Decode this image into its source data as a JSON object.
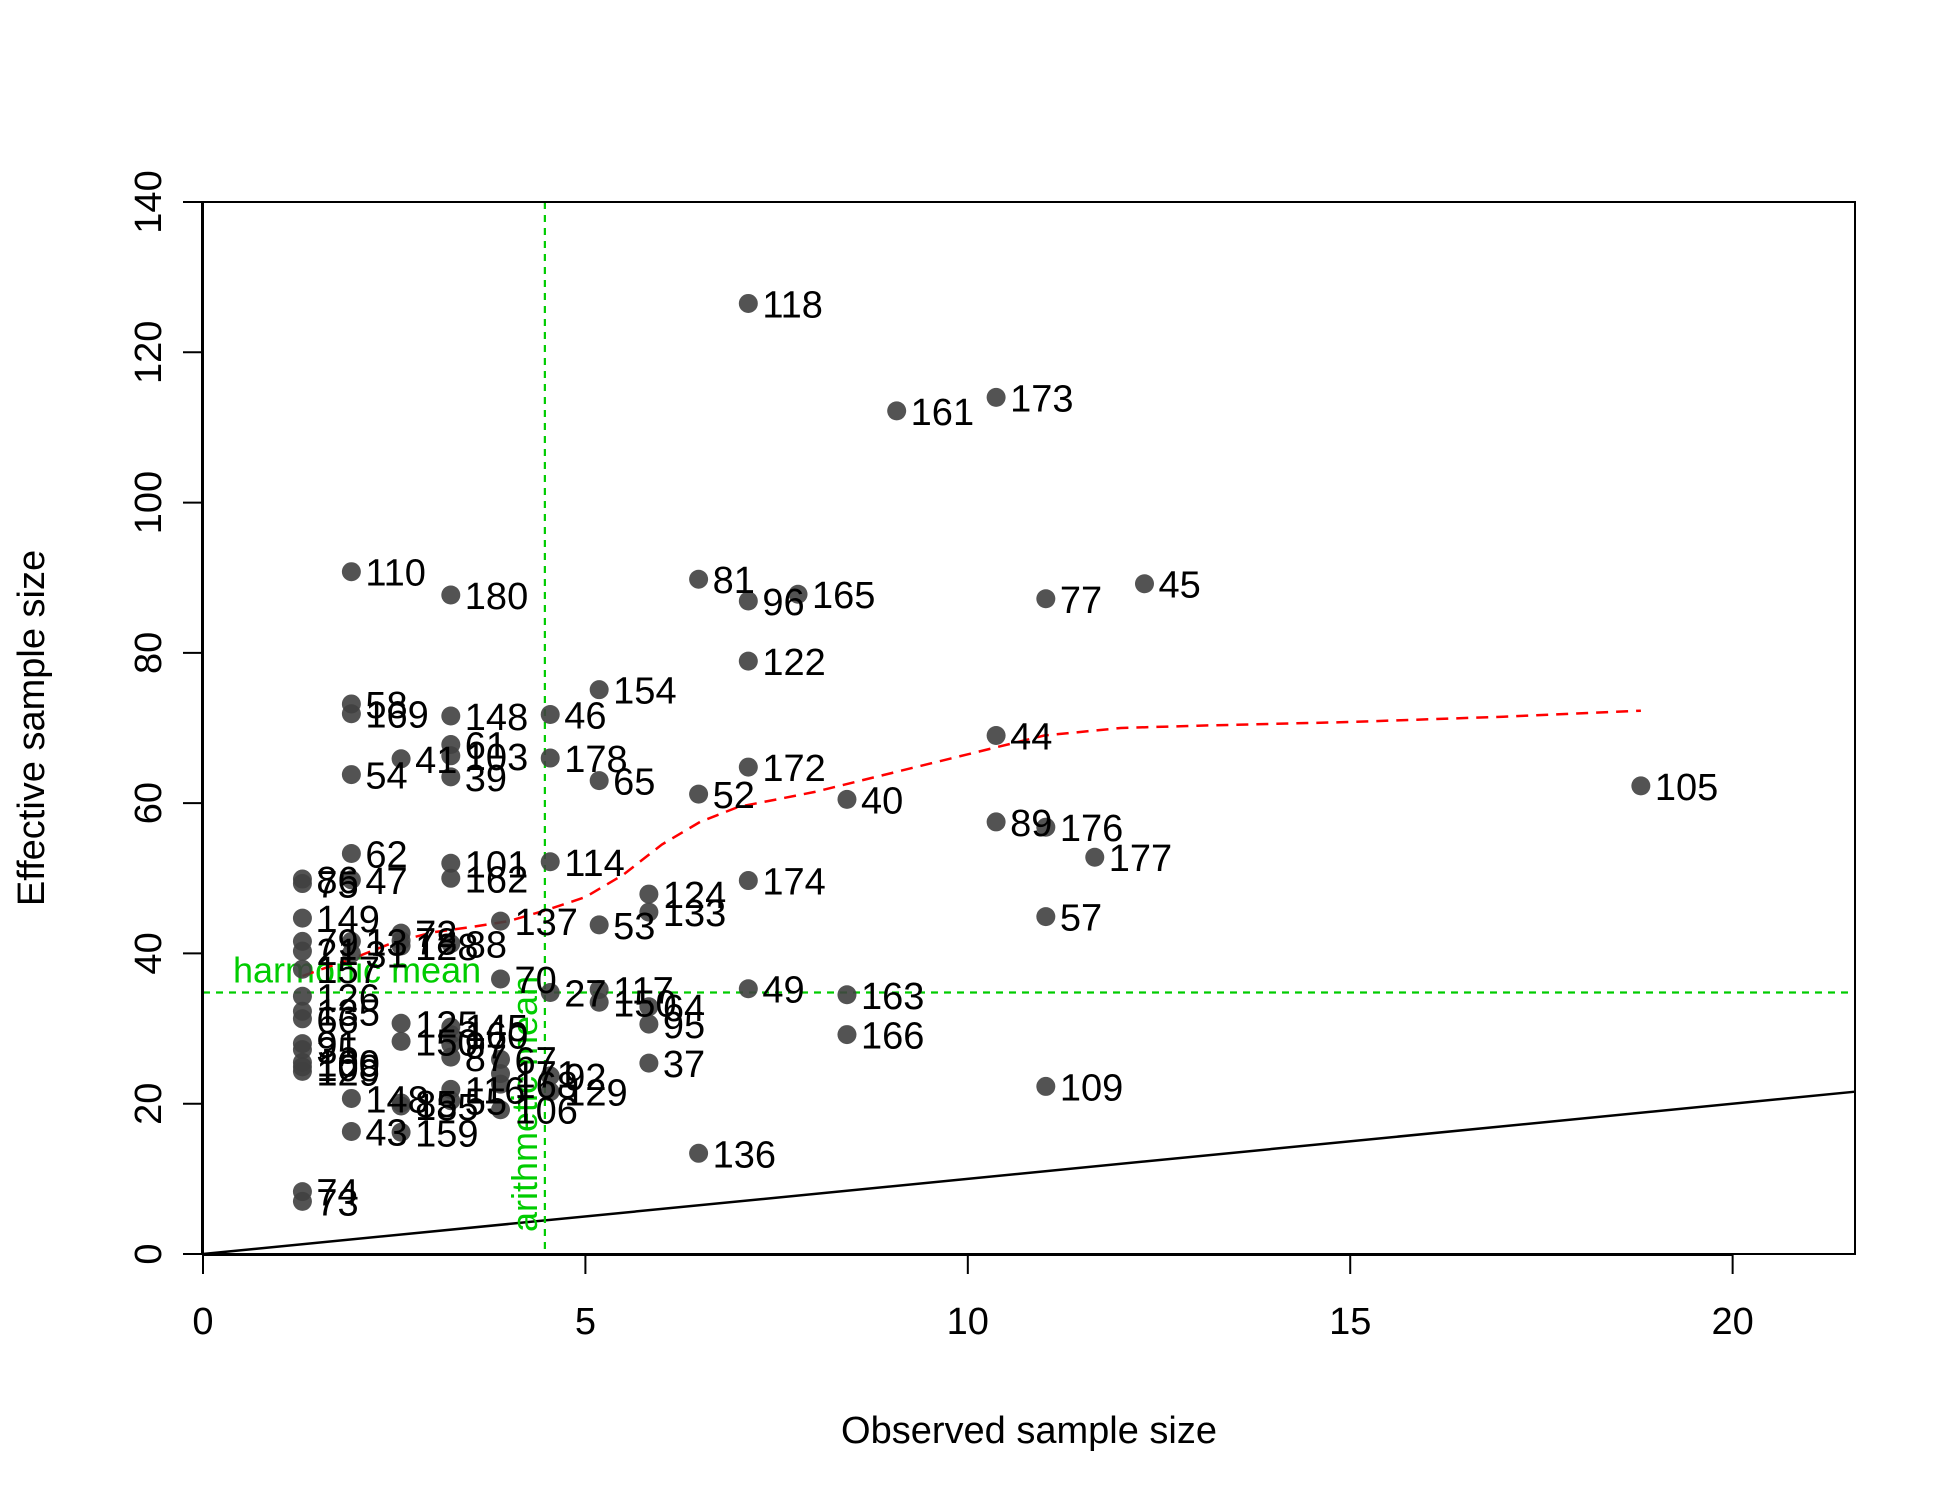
{
  "chart_data": {
    "type": "scatter",
    "title": "",
    "xlabel": "Observed sample size",
    "ylabel": "Effective sample size",
    "xlim": [
      0,
      21.6
    ],
    "ylim": [
      0,
      140
    ],
    "xticks": [
      "0",
      "5",
      "10",
      "15",
      "20"
    ],
    "yticks": [
      "0",
      "20",
      "40",
      "60",
      "80",
      "100",
      "120",
      "140"
    ],
    "colors": {
      "points": "#404040",
      "smooth": "#ff0000",
      "reference": "#00cc00",
      "identity": "#000000"
    },
    "identity_line": {
      "slope": 1
    },
    "reference_lines": {
      "harmonic_mean": {
        "label": "harmonic mean",
        "value": 34.8
      },
      "arithmetic_mean": {
        "label": "arithmetic mean",
        "value": 4.47
      }
    },
    "smooth_curve": {
      "x": [
        1.3,
        2.0,
        2.5,
        3.0,
        3.5,
        4.0,
        4.5,
        5.0,
        5.5,
        6.0,
        6.5,
        7.0,
        8.0,
        9.0,
        10.0,
        11.0,
        12.0,
        13.0,
        15.0,
        17.0,
        18.8
      ],
      "y": [
        37,
        39.5,
        41.5,
        42.8,
        43.5,
        44.3,
        45.8,
        47.5,
        50.5,
        54.5,
        57.5,
        59.5,
        61.5,
        64,
        66.5,
        69,
        70,
        70.3,
        70.8,
        71.5,
        72.3
      ]
    },
    "points": [
      {
        "label": "118",
        "x": 7.13,
        "y": 126.5
      },
      {
        "label": "161",
        "x": 9.07,
        "y": 112.2
      },
      {
        "label": "173",
        "x": 10.37,
        "y": 114.0
      },
      {
        "label": "110",
        "x": 1.94,
        "y": 90.8
      },
      {
        "label": "180",
        "x": 3.24,
        "y": 87.7
      },
      {
        "label": "81",
        "x": 6.48,
        "y": 89.8
      },
      {
        "label": "96",
        "x": 7.13,
        "y": 86.9
      },
      {
        "label": "165",
        "x": 7.78,
        "y": 87.8
      },
      {
        "label": "77",
        "x": 11.02,
        "y": 87.2
      },
      {
        "label": "45",
        "x": 12.31,
        "y": 89.2
      },
      {
        "label": "122",
        "x": 7.13,
        "y": 78.9
      },
      {
        "label": "154",
        "x": 5.18,
        "y": 75.1
      },
      {
        "label": "58",
        "x": 1.94,
        "y": 73.2
      },
      {
        "label": "169",
        "x": 1.94,
        "y": 71.9
      },
      {
        "label": "148",
        "x": 3.24,
        "y": 71.6
      },
      {
        "label": "46",
        "x": 4.54,
        "y": 71.8
      },
      {
        "label": "61",
        "x": 3.24,
        "y": 67.8
      },
      {
        "label": "41",
        "x": 2.59,
        "y": 65.9
      },
      {
        "label": "103",
        "x": 3.24,
        "y": 66.3
      },
      {
        "label": "178",
        "x": 4.54,
        "y": 66.0
      },
      {
        "label": "44",
        "x": 10.37,
        "y": 69.0
      },
      {
        "label": "54",
        "x": 1.94,
        "y": 63.8
      },
      {
        "label": "39",
        "x": 3.24,
        "y": 63.5
      },
      {
        "label": "65",
        "x": 5.18,
        "y": 63.0
      },
      {
        "label": "172",
        "x": 7.13,
        "y": 64.8
      },
      {
        "label": "52",
        "x": 6.48,
        "y": 61.2
      },
      {
        "label": "40",
        "x": 8.42,
        "y": 60.5
      },
      {
        "label": "105",
        "x": 18.8,
        "y": 62.3
      },
      {
        "label": "89",
        "x": 10.37,
        "y": 57.5
      },
      {
        "label": "176",
        "x": 11.02,
        "y": 56.8
      },
      {
        "label": "177",
        "x": 11.66,
        "y": 52.8
      },
      {
        "label": "62",
        "x": 1.94,
        "y": 53.3
      },
      {
        "label": "101",
        "x": 3.24,
        "y": 52.0
      },
      {
        "label": "114",
        "x": 4.54,
        "y": 52.2
      },
      {
        "label": "162",
        "x": 3.24,
        "y": 50.0
      },
      {
        "label": "47",
        "x": 1.94,
        "y": 49.8
      },
      {
        "label": "86",
        "x": 1.3,
        "y": 49.9
      },
      {
        "label": "75",
        "x": 1.3,
        "y": 49.3
      },
      {
        "label": "174",
        "x": 7.13,
        "y": 49.7
      },
      {
        "label": "124",
        "x": 5.83,
        "y": 47.9
      },
      {
        "label": "133",
        "x": 5.83,
        "y": 45.5
      },
      {
        "label": "57",
        "x": 11.02,
        "y": 44.9
      },
      {
        "label": "149",
        "x": 1.3,
        "y": 44.7
      },
      {
        "label": "137",
        "x": 3.89,
        "y": 44.3
      },
      {
        "label": "53",
        "x": 5.18,
        "y": 43.8
      },
      {
        "label": "72",
        "x": 2.59,
        "y": 42.7
      },
      {
        "label": "78",
        "x": 2.59,
        "y": 41.7
      },
      {
        "label": "88",
        "x": 3.24,
        "y": 41.3
      },
      {
        "label": "79",
        "x": 1.3,
        "y": 41.6
      },
      {
        "label": "13",
        "x": 1.94,
        "y": 41.6
      },
      {
        "label": "128",
        "x": 2.59,
        "y": 41.0
      },
      {
        "label": "21",
        "x": 1.3,
        "y": 40.3
      },
      {
        "label": "31",
        "x": 1.94,
        "y": 40.0
      },
      {
        "label": "157",
        "x": 1.3,
        "y": 37.9
      },
      {
        "label": "70",
        "x": 3.89,
        "y": 36.6
      },
      {
        "label": "27",
        "x": 4.54,
        "y": 34.8
      },
      {
        "label": "117",
        "x": 5.18,
        "y": 35.2
      },
      {
        "label": "49",
        "x": 7.13,
        "y": 35.3
      },
      {
        "label": "163",
        "x": 8.42,
        "y": 34.5
      },
      {
        "label": "126",
        "x": 1.3,
        "y": 34.3
      },
      {
        "label": "150",
        "x": 5.18,
        "y": 33.5
      },
      {
        "label": "64",
        "x": 5.83,
        "y": 32.9
      },
      {
        "label": "135",
        "x": 1.3,
        "y": 32.3
      },
      {
        "label": "66",
        "x": 1.3,
        "y": 31.3
      },
      {
        "label": "95",
        "x": 5.83,
        "y": 30.6
      },
      {
        "label": "125",
        "x": 2.59,
        "y": 30.7
      },
      {
        "label": "145",
        "x": 3.24,
        "y": 30.2
      },
      {
        "label": "160",
        "x": 3.24,
        "y": 29.2
      },
      {
        "label": "166",
        "x": 8.42,
        "y": 29.2
      },
      {
        "label": "91",
        "x": 1.3,
        "y": 28.0
      },
      {
        "label": "150",
        "x": 2.59,
        "y": 28.3
      },
      {
        "label": "97",
        "x": 3.24,
        "y": 27.9
      },
      {
        "label": "35",
        "x": 1.3,
        "y": 27.2
      },
      {
        "label": "87",
        "x": 3.24,
        "y": 26.2
      },
      {
        "label": "67",
        "x": 3.89,
        "y": 25.9
      },
      {
        "label": "37",
        "x": 5.83,
        "y": 25.4
      },
      {
        "label": "100",
        "x": 1.3,
        "y": 25.5
      },
      {
        "label": "108",
        "x": 1.3,
        "y": 24.9
      },
      {
        "label": "129",
        "x": 1.3,
        "y": 24.3
      },
      {
        "label": "171",
        "x": 3.89,
        "y": 24.0
      },
      {
        "label": "92",
        "x": 4.54,
        "y": 23.7
      },
      {
        "label": "168",
        "x": 3.89,
        "y": 22.6
      },
      {
        "label": "109",
        "x": 11.02,
        "y": 22.3
      },
      {
        "label": "129",
        "x": 4.54,
        "y": 21.6
      },
      {
        "label": "116",
        "x": 3.24,
        "y": 21.9
      },
      {
        "label": "55",
        "x": 3.24,
        "y": 20.4
      },
      {
        "label": "148",
        "x": 1.94,
        "y": 20.7
      },
      {
        "label": "85",
        "x": 2.59,
        "y": 20.1
      },
      {
        "label": "185",
        "x": 2.59,
        "y": 19.7
      },
      {
        "label": "106",
        "x": 3.89,
        "y": 19.2
      },
      {
        "label": "43",
        "x": 1.94,
        "y": 16.3
      },
      {
        "label": "159",
        "x": 2.59,
        "y": 16.2
      },
      {
        "label": "136",
        "x": 6.48,
        "y": 13.4
      },
      {
        "label": "74",
        "x": 1.3,
        "y": 8.3
      },
      {
        "label": "73",
        "x": 1.3,
        "y": 7.0
      }
    ]
  }
}
